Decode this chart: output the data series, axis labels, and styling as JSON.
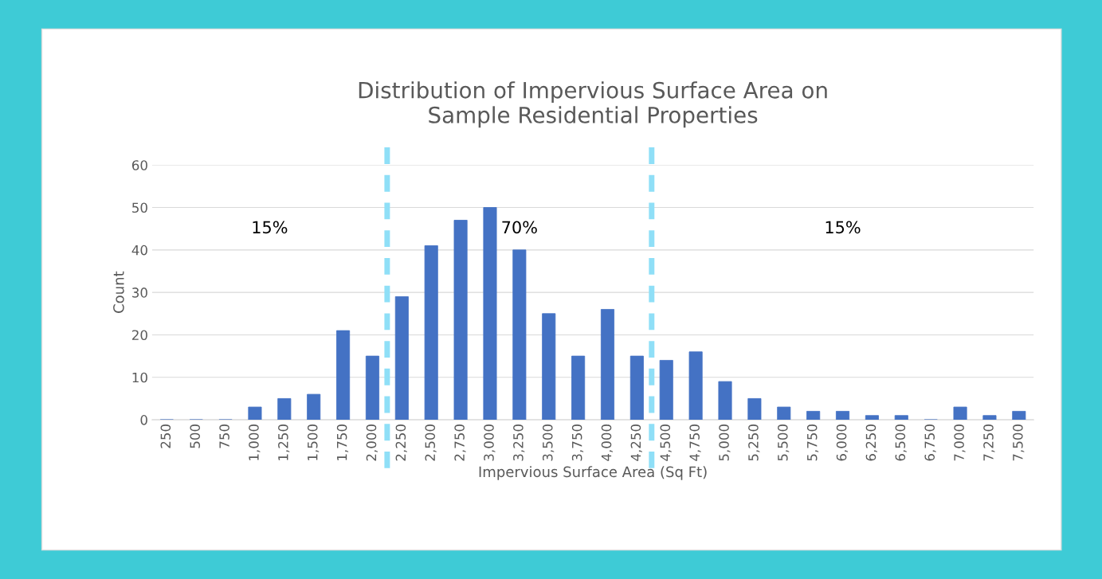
{
  "chart_data": {
    "type": "bar",
    "title": "Distribution of Impervious Surface Area on\nSample Residential Properties",
    "xlabel": "Impervious Surface Area (Sq Ft)",
    "ylabel": "Count",
    "x": [
      250,
      500,
      750,
      1000,
      1250,
      1500,
      1750,
      2000,
      2250,
      2500,
      2750,
      3000,
      3250,
      3500,
      3750,
      4000,
      4250,
      4500,
      4750,
      5000,
      5250,
      5500,
      5750,
      6000,
      6250,
      6500,
      6750,
      7000,
      7250,
      7500
    ],
    "values": [
      0,
      0,
      0,
      3,
      5,
      6,
      21,
      15,
      29,
      41,
      47,
      50,
      40,
      25,
      15,
      26,
      15,
      14,
      16,
      9,
      5,
      3,
      2,
      2,
      1,
      1,
      0,
      3,
      1,
      2
    ],
    "color": "#4472c4",
    "xlim": [
      125,
      7625
    ],
    "xticks": [
      250,
      500,
      750,
      {
        "value": 1000,
        "label": "1,000"
      },
      {
        "value": 1250,
        "label": "1,250"
      },
      {
        "value": 1500,
        "label": "1,500"
      },
      {
        "value": 1750,
        "label": "1,750"
      },
      {
        "value": 2000,
        "label": "2,000"
      },
      {
        "value": 2250,
        "label": "2,250"
      },
      {
        "value": 2500,
        "label": "2,500"
      },
      {
        "value": 2750,
        "label": "2,750"
      },
      {
        "value": 3000,
        "label": "3,000"
      },
      {
        "value": 3250,
        "label": "3,250"
      },
      {
        "value": 3500,
        "label": "3,500"
      },
      {
        "value": 3750,
        "label": "3,750"
      },
      {
        "value": 4000,
        "label": "4,000"
      },
      {
        "value": 4250,
        "label": "4,250"
      },
      {
        "value": 4500,
        "label": "4,500"
      },
      {
        "value": 4750,
        "label": "4,750"
      },
      {
        "value": 5000,
        "label": "5,000"
      },
      {
        "value": 5250,
        "label": "5,250"
      },
      {
        "value": 5500,
        "label": "5,500"
      },
      {
        "value": 5750,
        "label": "5,750"
      },
      {
        "value": 6000,
        "label": "6,000"
      },
      {
        "value": 6250,
        "label": "6,250"
      },
      {
        "value": 6500,
        "label": "6,500"
      },
      {
        "value": 6750,
        "label": "6,750"
      },
      {
        "value": 7000,
        "label": "7,000"
      },
      {
        "value": 7250,
        "label": "7,250"
      },
      {
        "value": 7500,
        "label": "7,500"
      }
    ],
    "ylim": [
      0,
      60
    ],
    "yticks": [
      0,
      10,
      20,
      30,
      40,
      50,
      60
    ],
    "grid": "y",
    "ref_lines": [
      {
        "axis": "x",
        "value": 2125,
        "color": "#8fdff7",
        "line_style": "dashed"
      },
      {
        "axis": "x",
        "value": 4375,
        "color": "#8fdff7",
        "line_style": "dashed"
      }
    ],
    "annotations": [
      "15%",
      "70%",
      "15%"
    ]
  }
}
